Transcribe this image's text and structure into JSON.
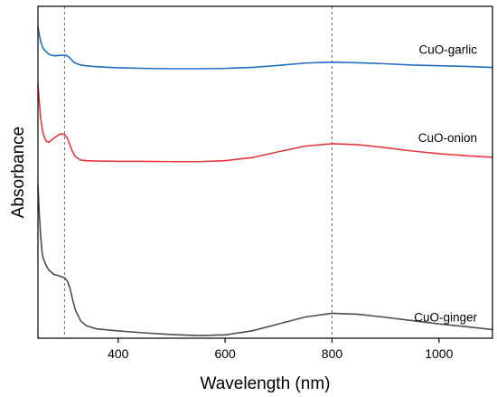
{
  "chart_data": {
    "type": "line",
    "title": "",
    "xlabel": "Wavelength (nm)",
    "ylabel": "Absorbance",
    "xlim": [
      250,
      1100
    ],
    "ylim": [
      0,
      1
    ],
    "x_ticks": [
      "400",
      "600",
      "800",
      "1000"
    ],
    "x_tick_values": [
      400,
      600,
      800,
      1000
    ],
    "y_ticks_shown": false,
    "grid": false,
    "reference_lines_x": [
      300,
      800
    ],
    "series": [
      {
        "name": "CuO-garlic",
        "color": "#1f6fc0",
        "x": [
          250,
          255,
          260,
          270,
          280,
          290,
          300,
          305,
          310,
          315,
          320,
          330,
          340,
          360,
          400,
          450,
          500,
          550,
          600,
          650,
          700,
          750,
          800,
          850,
          900,
          950,
          1000,
          1050,
          1100
        ],
        "y": [
          0.937,
          0.894,
          0.872,
          0.856,
          0.851,
          0.852,
          0.853,
          0.851,
          0.844,
          0.835,
          0.829,
          0.823,
          0.821,
          0.818,
          0.815,
          0.813,
          0.812,
          0.812,
          0.813,
          0.816,
          0.822,
          0.829,
          0.832,
          0.83,
          0.827,
          0.823,
          0.821,
          0.819,
          0.816
        ]
      },
      {
        "name": "CuO-onion",
        "color": "#e8373a",
        "x": [
          250,
          255,
          260,
          265,
          270,
          280,
          290,
          295,
          300,
          305,
          310,
          315,
          320,
          330,
          340,
          360,
          400,
          450,
          500,
          550,
          600,
          650,
          700,
          750,
          800,
          850,
          900,
          950,
          1000,
          1050,
          1100
        ],
        "y": [
          0.765,
          0.662,
          0.615,
          0.594,
          0.59,
          0.603,
          0.614,
          0.616,
          0.613,
          0.603,
          0.581,
          0.561,
          0.547,
          0.537,
          0.535,
          0.534,
          0.533,
          0.533,
          0.532,
          0.532,
          0.535,
          0.544,
          0.562,
          0.579,
          0.586,
          0.583,
          0.574,
          0.564,
          0.556,
          0.55,
          0.545
        ]
      },
      {
        "name": "CuO-ginger",
        "color": "#4d4d4d",
        "x": [
          250,
          252,
          255,
          258,
          260,
          265,
          270,
          280,
          290,
          300,
          305,
          310,
          315,
          320,
          330,
          340,
          360,
          400,
          450,
          500,
          550,
          600,
          650,
          700,
          750,
          800,
          850,
          900,
          950,
          1000,
          1050,
          1100
        ],
        "y": [
          0.46,
          0.39,
          0.31,
          0.255,
          0.24,
          0.22,
          0.206,
          0.192,
          0.188,
          0.182,
          0.172,
          0.15,
          0.115,
          0.085,
          0.052,
          0.038,
          0.028,
          0.022,
          0.016,
          0.011,
          0.008,
          0.01,
          0.022,
          0.043,
          0.064,
          0.075,
          0.072,
          0.063,
          0.053,
          0.043,
          0.035,
          0.026
        ]
      }
    ]
  }
}
